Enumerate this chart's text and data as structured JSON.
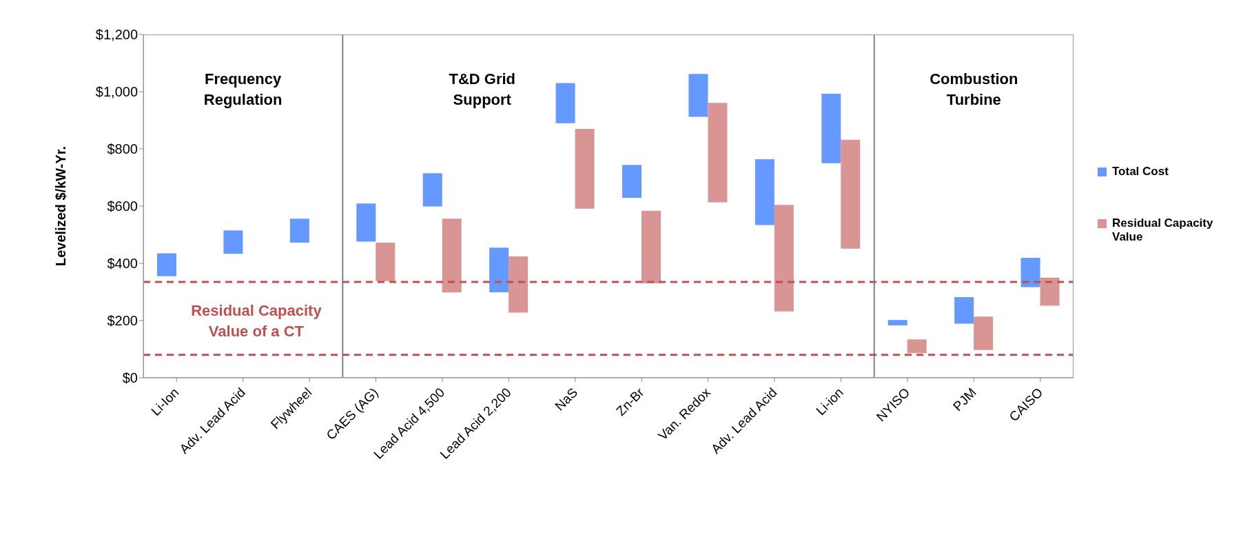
{
  "chart_data": {
    "type": "bar",
    "ylabel": "Levelized $/kW-Yr.",
    "categories": [
      "Li-Ion",
      "Adv. Lead Acid",
      "Flywheel",
      "CAES (AG)",
      "Lead Acid 4,500",
      "Lead Acid 2,200",
      "NaS",
      "Zn-Br",
      "Van. Redox",
      "Adv. Lead Acid",
      "Li-ion",
      "NYISO",
      "PJM",
      "CAISO"
    ],
    "series": [
      {
        "name": "Total Cost",
        "color": "#6699ff",
        "base": [
          355,
          433,
          472,
          476,
          599,
          299,
          890,
          629,
          912,
          534,
          750,
          183,
          189,
          317
        ],
        "values": [
          80,
          82,
          84,
          133,
          116,
          156,
          140,
          115,
          150,
          230,
          243,
          19,
          93,
          102
        ]
      },
      {
        "name": "Residual Capacity Value",
        "color": "#d99594",
        "base": [
          null,
          null,
          null,
          338,
          298,
          228,
          591,
          330,
          613,
          232,
          451,
          86,
          97,
          252
        ],
        "values": [
          null,
          null,
          null,
          134,
          258,
          196,
          279,
          254,
          348,
          372,
          381,
          48,
          117,
          98
        ]
      }
    ],
    "ylim": [
      0,
      1200
    ],
    "yticks": [
      {
        "value": 0,
        "label": "$0"
      },
      {
        "value": 200,
        "label": "$200"
      },
      {
        "value": 400,
        "label": "$400"
      },
      {
        "value": 600,
        "label": "$600"
      },
      {
        "value": 800,
        "label": "$800"
      },
      {
        "value": 1000,
        "label": "$1,000"
      },
      {
        "value": 1200,
        "label": "$1,200"
      }
    ],
    "ref_lines": [
      {
        "axis": "y",
        "value": 335,
        "color": "#c0504d",
        "line_style": "dashed"
      },
      {
        "axis": "y",
        "value": 80,
        "color": "#c0504d",
        "line_style": "dashed"
      }
    ],
    "annotations": [
      "Frequency Regulation",
      "T&D Grid Support",
      "Combustion Turbine",
      "Residual Capacity Value of a CT"
    ],
    "legend": "right"
  }
}
